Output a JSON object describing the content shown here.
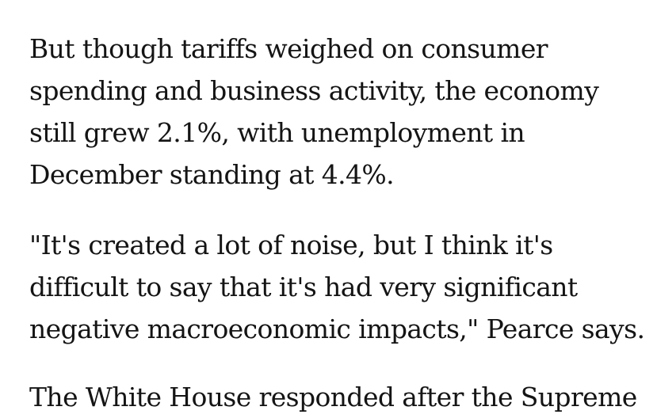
{
  "article": {
    "paragraphs": [
      {
        "lines": [
          "But though tariffs weighed on consumer",
          "spending and business activity, the economy",
          "still grew 2.1%, with unemployment in",
          "December standing at 4.4%."
        ]
      },
      {
        "lines": [
          "\"It's created a lot of noise, but I think it's",
          "difficult to say that it's had very significant",
          "negative macroeconomic impacts,\" Pearce says."
        ]
      },
      {
        "lines": [
          "The White House responded after the Supreme"
        ]
      }
    ]
  }
}
